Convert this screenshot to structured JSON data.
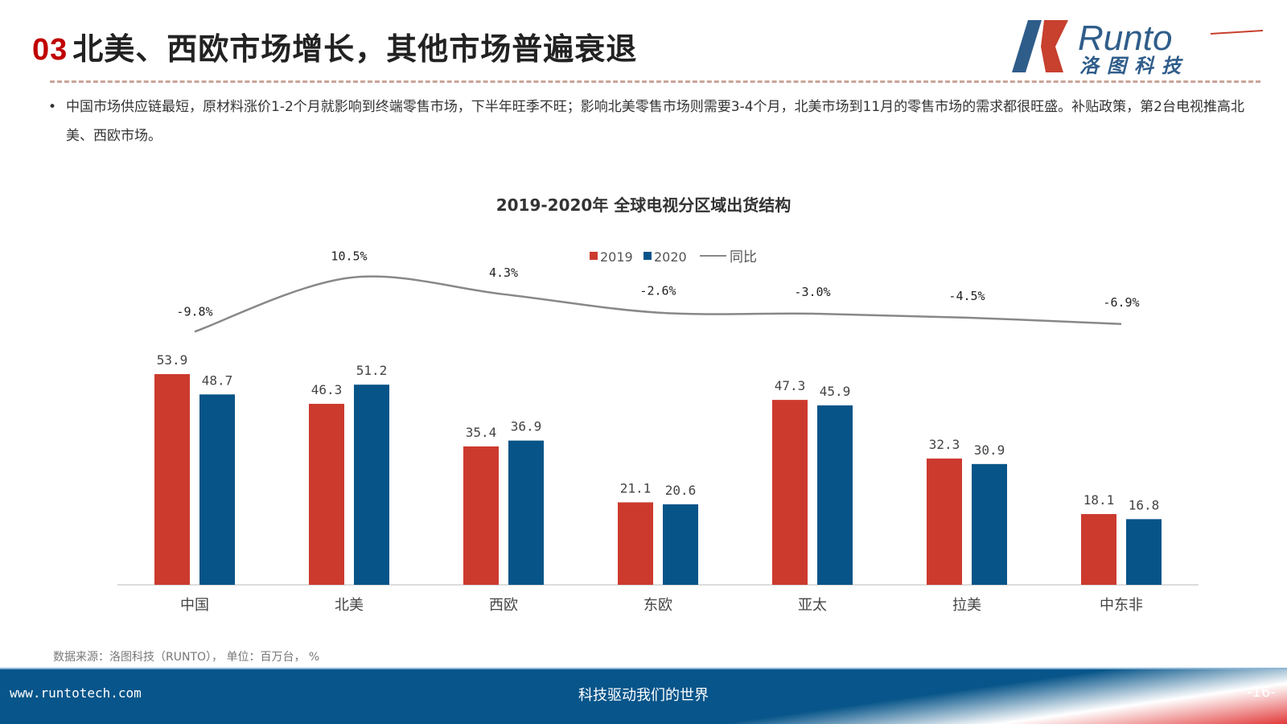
{
  "header": {
    "number": "03",
    "title": "北美、西欧市场增长，其他市场普遍衰退",
    "logo_text": "Runto",
    "logo_subtext": "洛图科技"
  },
  "bullet": "中国市场供应链最短，原材料涨价1-2个月就影响到终端零售市场，下半年旺季不旺；影响北美零售市场则需要3-4个月，北美市场到11月的零售市场的需求都很旺盛。补贴政策，第2台电视推高北美、西欧市场。",
  "chart_data": {
    "type": "bar",
    "title": "2019-2020年 全球电视分区域出货结构",
    "categories": [
      "中国",
      "北美",
      "西欧",
      "东欧",
      "亚太",
      "拉美",
      "中东非"
    ],
    "series": [
      {
        "name": "2019",
        "color": "#cc3a2e",
        "values": [
          53.9,
          46.3,
          35.4,
          21.1,
          47.3,
          32.3,
          18.1
        ]
      },
      {
        "name": "2020",
        "color": "#075488",
        "values": [
          48.7,
          51.2,
          36.9,
          20.6,
          45.9,
          30.9,
          16.8
        ]
      }
    ],
    "line": {
      "name": "同比",
      "type": "line",
      "color": "#888888",
      "values": [
        -9.8,
        10.5,
        4.3,
        -2.6,
        -3.0,
        -4.5,
        -6.9
      ],
      "labels": [
        "-9.8%",
        "10.5%",
        "4.3%",
        "-2.6%",
        "-3.0%",
        "-4.5%",
        "-6.9%"
      ]
    },
    "value_labels": {
      "2019": [
        "53.9",
        "46.3",
        "35.4",
        "21.1",
        "47.3",
        "32.3",
        "18.1"
      ],
      "2020": [
        "48.7",
        "51.2",
        "36.9",
        "20.6",
        "45.9",
        "30.9",
        "16.8"
      ]
    },
    "legend_placement": "top-center",
    "grid": false
  },
  "source": "数据来源：洛图科技（RUNTO），  单位：百万台， %",
  "footer": {
    "url": "www.runtotech.com",
    "slogan": "科技驱动我们的世界",
    "page": "-16-"
  }
}
